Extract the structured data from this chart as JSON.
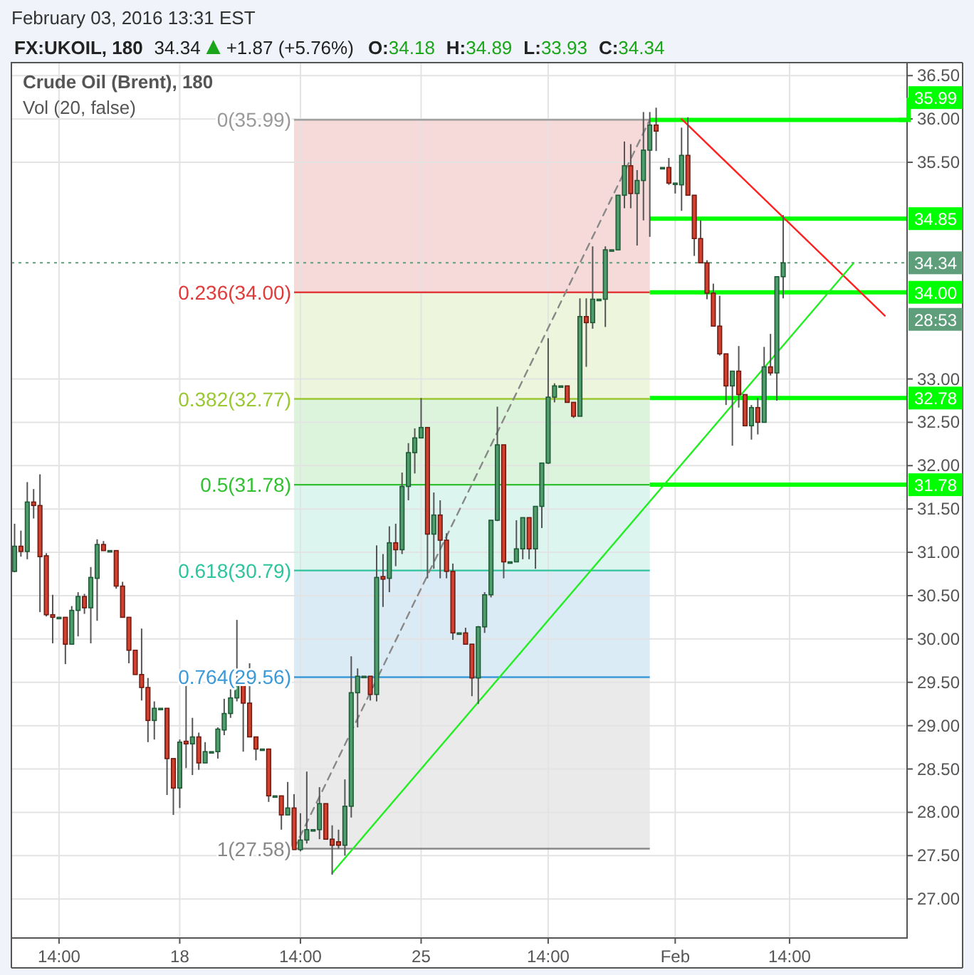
{
  "chart_data": {
    "type": "candlestick",
    "title": "Crude Oil (Brent), 180",
    "subtitle": "Vol (20, false)",
    "annotations": [
      "February 03, 2016 13:31 EST",
      "FX:UKOIL, 180",
      "34.34",
      "+1.87 (+5.76%)",
      "O:34.18",
      "H:34.89",
      "L:33.93",
      "C:34.34",
      "28:53"
    ],
    "categories": [
      null,
      null,
      null,
      null,
      null,
      null,
      null,
      "14:00",
      null,
      null,
      null,
      null,
      null,
      null,
      null,
      null,
      null,
      null,
      null,
      null,
      null,
      null,
      null,
      null,
      null,
      null,
      "18",
      null,
      null,
      null,
      null,
      null,
      null,
      null,
      null,
      null,
      null,
      null,
      null,
      null,
      null,
      null,
      null,
      null,
      null,
      "14:00",
      null,
      null,
      null,
      null,
      null,
      null,
      null,
      null,
      null,
      null,
      null,
      null,
      null,
      null,
      null,
      null,
      null,
      null,
      "25",
      null,
      null,
      null,
      null,
      null,
      null,
      null,
      null,
      null,
      null,
      null,
      null,
      null,
      null,
      null,
      null,
      null,
      null,
      null,
      "14:00",
      null,
      null,
      null,
      null,
      null,
      null,
      null,
      null,
      null,
      null,
      null,
      null,
      null,
      null,
      null,
      null,
      null,
      null,
      null,
      "Feb",
      null,
      null,
      null,
      null,
      null,
      null,
      null,
      null,
      null,
      null,
      null,
      null,
      null,
      null,
      null,
      null,
      null,
      "14:00",
      null,
      null,
      null,
      null,
      null,
      null,
      null,
      null,
      null,
      null,
      null,
      null,
      null,
      null,
      null,
      null,
      null,
      null
    ],
    "ohlc": [
      [
        30.78,
        31.33,
        30.77,
        31.07
      ],
      [
        31.07,
        31.25,
        30.95,
        31.01
      ],
      [
        31.01,
        31.81,
        30.92,
        31.58
      ],
      [
        31.58,
        31.73,
        31.39,
        31.54
      ],
      [
        31.54,
        31.9,
        30.31,
        30.95
      ],
      [
        30.96,
        30.99,
        30.26,
        30.28
      ],
      [
        30.28,
        30.51,
        29.95,
        30.25
      ],
      [
        30.25,
        30.25,
        30.25,
        30.25
      ],
      [
        30.25,
        30.25,
        29.71,
        29.94
      ],
      [
        29.94,
        30.38,
        29.94,
        30.33
      ],
      [
        30.33,
        30.54,
        30.03,
        30.49
      ],
      [
        30.49,
        30.52,
        30.29,
        30.36
      ],
      [
        30.36,
        30.83,
        29.95,
        30.71
      ],
      [
        30.7,
        31.15,
        30.21,
        31.09
      ],
      [
        31.09,
        31.13,
        31.02,
        31.02
      ],
      [
        31.02,
        31.02,
        31.02,
        31.02
      ],
      [
        31.02,
        31.02,
        30.58,
        30.61
      ],
      [
        30.61,
        30.66,
        30.25,
        30.25
      ],
      [
        30.25,
        30.25,
        29.72,
        29.87
      ],
      [
        29.87,
        29.87,
        29.59,
        29.59
      ],
      [
        29.59,
        30.12,
        29.29,
        29.44
      ],
      [
        29.44,
        29.55,
        28.81,
        29.06
      ],
      [
        29.06,
        29.28,
        28.84,
        29.2
      ],
      [
        29.2,
        29.2,
        29.2,
        29.2
      ],
      [
        29.2,
        29.2,
        28.2,
        28.62
      ],
      [
        28.62,
        28.62,
        27.97,
        28.28
      ],
      [
        28.28,
        28.84,
        28.05,
        28.81
      ],
      [
        28.82,
        29.47,
        28.51,
        28.79
      ],
      [
        28.79,
        29.09,
        28.43,
        28.87
      ],
      [
        28.87,
        28.92,
        28.49,
        28.57
      ],
      [
        28.57,
        28.81,
        28.57,
        28.7
      ],
      [
        28.7,
        28.7,
        28.7,
        28.7
      ],
      [
        28.7,
        28.98,
        28.62,
        28.96
      ],
      [
        28.95,
        29.31,
        28.89,
        29.14
      ],
      [
        29.14,
        29.42,
        29.09,
        29.32
      ],
      [
        29.32,
        30.22,
        29.28,
        29.51
      ],
      [
        29.51,
        29.51,
        28.7,
        29.26
      ],
      [
        29.26,
        29.72,
        28.87,
        28.87
      ],
      [
        28.87,
        28.87,
        28.6,
        28.73
      ],
      [
        28.73,
        28.73,
        28.73,
        28.73
      ],
      [
        28.73,
        28.73,
        28.12,
        28.19
      ],
      [
        28.19,
        28.19,
        28.19,
        28.19
      ],
      [
        28.19,
        28.19,
        27.8,
        27.97
      ],
      [
        27.97,
        28.35,
        27.97,
        28.05
      ],
      [
        28.05,
        28.21,
        27.57,
        27.57
      ],
      [
        27.57,
        27.99,
        27.55,
        27.68
      ],
      [
        27.68,
        28.47,
        27.64,
        27.8
      ],
      [
        27.8,
        27.8,
        27.8,
        27.8
      ],
      [
        27.8,
        28.29,
        27.69,
        28.1
      ],
      [
        28.1,
        28.1,
        27.69,
        27.69
      ],
      [
        27.69,
        27.85,
        27.28,
        27.62
      ],
      [
        27.66,
        27.8,
        27.58,
        27.62
      ],
      [
        27.62,
        28.38,
        27.5,
        28.07
      ],
      [
        28.07,
        29.8,
        27.94,
        29.38
      ],
      [
        29.38,
        29.66,
        28.98,
        29.57
      ],
      [
        29.57,
        29.57,
        29.57,
        29.57
      ],
      [
        29.57,
        29.57,
        29.29,
        29.36
      ],
      [
        29.36,
        31.08,
        29.28,
        30.71
      ],
      [
        30.72,
        30.98,
        30.37,
        30.69
      ],
      [
        30.7,
        31.3,
        30.54,
        31.11
      ],
      [
        31.11,
        31.33,
        30.84,
        31.03
      ],
      [
        31.03,
        31.92,
        30.98,
        31.76
      ],
      [
        31.76,
        32.26,
        31.6,
        32.15
      ],
      [
        32.15,
        32.43,
        31.91,
        32.32
      ],
      [
        32.32,
        32.78,
        32.32,
        32.44
      ],
      [
        32.44,
        32.44,
        30.7,
        31.21
      ],
      [
        31.21,
        31.69,
        30.81,
        31.43
      ],
      [
        31.43,
        31.6,
        30.7,
        31.14
      ],
      [
        31.14,
        31.22,
        30.7,
        30.78
      ],
      [
        30.78,
        30.87,
        29.99,
        30.07
      ],
      [
        30.07,
        30.07,
        30.07,
        30.07
      ],
      [
        30.07,
        30.13,
        29.94,
        29.94
      ],
      [
        29.94,
        29.94,
        29.34,
        29.55
      ],
      [
        29.55,
        30.15,
        29.25,
        30.14
      ],
      [
        30.14,
        30.54,
        30.07,
        30.51
      ],
      [
        30.51,
        31.37,
        30.48,
        31.37
      ],
      [
        31.37,
        32.68,
        31.36,
        32.24
      ],
      [
        32.24,
        32.24,
        30.7,
        30.89
      ],
      [
        30.89,
        30.89,
        30.89,
        30.89
      ],
      [
        30.89,
        31.37,
        30.89,
        31.04
      ],
      [
        31.04,
        31.4,
        30.92,
        31.4
      ],
      [
        31.4,
        31.4,
        30.92,
        31.04
      ],
      [
        31.04,
        31.53,
        30.81,
        31.53
      ],
      [
        31.53,
        32.03,
        31.28,
        32.03
      ],
      [
        32.03,
        33.47,
        32.02,
        32.79
      ],
      [
        32.79,
        32.95,
        32.73,
        32.92
      ],
      [
        32.92,
        32.92,
        32.92,
        32.92
      ],
      [
        32.92,
        32.92,
        32.73,
        32.73
      ],
      [
        32.73,
        32.73,
        32.55,
        32.57
      ],
      [
        32.57,
        33.93,
        32.57,
        33.72
      ],
      [
        33.72,
        33.93,
        33.14,
        33.65
      ],
      [
        33.65,
        34.53,
        33.58,
        33.92
      ],
      [
        33.92,
        33.92,
        33.92,
        33.92
      ],
      [
        33.92,
        34.53,
        33.6,
        34.49
      ],
      [
        34.49,
        34.49,
        34.49,
        34.49
      ],
      [
        34.49,
        35.12,
        34.49,
        35.12
      ],
      [
        35.12,
        35.74,
        34.97,
        35.46
      ],
      [
        35.46,
        35.71,
        34.97,
        35.14
      ],
      [
        35.14,
        35.41,
        34.54,
        35.29
      ],
      [
        35.29,
        36.08,
        34.83,
        35.64
      ],
      [
        35.64,
        36.08,
        34.64,
        35.93
      ],
      [
        35.93,
        36.13,
        35.63,
        35.86
      ],
      [
        35.44,
        35.44,
        35.44,
        35.44
      ],
      [
        35.44,
        35.55,
        35.24,
        35.26
      ],
      [
        35.26,
        35.26,
        35.14,
        35.26
      ],
      [
        35.24,
        35.9,
        34.94,
        35.58
      ],
      [
        35.58,
        36.02,
        35.12,
        35.12
      ],
      [
        35.12,
        35.12,
        34.42,
        34.62
      ],
      [
        34.62,
        34.83,
        34.34,
        34.34
      ],
      [
        34.34,
        34.37,
        33.92,
        33.99
      ],
      [
        33.99,
        34.1,
        33.61,
        33.61
      ],
      [
        33.61,
        33.96,
        33.27,
        33.29
      ],
      [
        33.29,
        33.29,
        32.7,
        32.92
      ],
      [
        32.92,
        33.09,
        32.23,
        33.09
      ],
      [
        33.09,
        33.38,
        32.67,
        32.82
      ],
      [
        32.82,
        32.82,
        32.46,
        32.46
      ],
      [
        32.46,
        32.7,
        32.3,
        32.67
      ],
      [
        32.67,
        32.78,
        32.36,
        32.5
      ],
      [
        32.5,
        33.37,
        32.5,
        33.14
      ],
      [
        33.14,
        33.52,
        33.04,
        33.07
      ],
      [
        33.07,
        34.18,
        32.75,
        34.18
      ],
      [
        34.18,
        34.89,
        33.93,
        34.34
      ],
      null,
      null,
      null,
      null,
      null,
      null,
      null,
      null,
      null,
      null,
      null,
      null,
      null,
      null,
      null,
      null,
      null,
      null,
      null
    ],
    "series": [
      {
        "type": "line",
        "values": [
          null,
          null,
          null,
          null,
          null,
          null,
          null,
          null,
          null,
          null,
          null,
          null,
          null,
          null,
          null,
          null,
          null,
          null,
          null,
          null,
          null,
          null,
          null,
          null,
          null,
          null,
          null,
          null,
          null,
          null,
          null,
          null,
          null,
          null,
          null,
          null,
          null,
          null,
          null,
          null,
          null,
          null,
          null,
          null,
          null,
          null,
          null,
          null,
          null,
          null,
          null,
          null,
          null,
          null,
          null,
          null,
          null,
          null,
          null,
          null,
          null,
          null,
          null,
          null,
          null,
          null,
          null,
          null,
          null,
          null,
          null,
          null,
          null,
          null,
          null,
          null,
          null,
          null,
          null,
          null,
          null,
          null,
          null,
          null,
          null,
          null,
          null,
          null,
          null,
          null,
          null,
          null,
          null,
          null,
          null,
          null,
          null,
          null,
          null,
          null,
          null,
          null,
          null,
          null,
          null,
          36.0,
          null,
          null,
          null,
          null,
          null,
          null,
          null,
          null,
          null,
          null,
          null,
          null,
          null,
          null,
          null,
          null,
          null,
          null,
          null,
          null,
          null,
          null,
          null,
          null,
          null,
          null,
          null,
          null,
          null,
          null,
          null,
          33.73,
          null,
          null,
          null
        ],
        "color": "#ff2020"
      },
      {
        "type": "line",
        "values": [
          null,
          null,
          null,
          null,
          null,
          null,
          null,
          null,
          null,
          null,
          null,
          null,
          null,
          null,
          null,
          null,
          null,
          null,
          null,
          null,
          null,
          null,
          null,
          null,
          null,
          null,
          null,
          null,
          null,
          null,
          null,
          null,
          null,
          null,
          null,
          null,
          null,
          null,
          null,
          null,
          null,
          null,
          null,
          null,
          null,
          null,
          null,
          null,
          null,
          null,
          27.3,
          null,
          null,
          null,
          null,
          null,
          null,
          null,
          null,
          null,
          null,
          null,
          null,
          null,
          null,
          null,
          null,
          null,
          null,
          null,
          null,
          null,
          null,
          null,
          null,
          null,
          null,
          null,
          null,
          null,
          null,
          null,
          null,
          null,
          null,
          null,
          null,
          null,
          null,
          null,
          null,
          null,
          null,
          null,
          null,
          null,
          null,
          null,
          null,
          null,
          null,
          null,
          null,
          null,
          null,
          null,
          null,
          null,
          null,
          null,
          null,
          null,
          null,
          null,
          null,
          null,
          null,
          null,
          null,
          null,
          null,
          null,
          null,
          null,
          null,
          null,
          null,
          null,
          null,
          null,
          null,
          null,
          34.33,
          null,
          null,
          null,
          null,
          null,
          null,
          null,
          null
        ],
        "color": "#22ee22"
      },
      {
        "type": "line",
        "values": [
          null,
          null,
          null,
          null,
          null,
          null,
          null,
          null,
          null,
          null,
          null,
          null,
          null,
          null,
          null,
          null,
          null,
          null,
          null,
          null,
          null,
          null,
          null,
          null,
          null,
          null,
          null,
          null,
          null,
          null,
          null,
          null,
          null,
          null,
          null,
          null,
          null,
          null,
          null,
          null,
          null,
          null,
          null,
          null,
          27.58,
          null,
          null,
          null,
          null,
          null,
          null,
          null,
          null,
          null,
          null,
          null,
          null,
          null,
          null,
          null,
          null,
          null,
          null,
          null,
          null,
          null,
          null,
          null,
          null,
          null,
          null,
          null,
          null,
          null,
          null,
          null,
          null,
          null,
          null,
          null,
          null,
          null,
          null,
          null,
          null,
          null,
          null,
          null,
          null,
          null,
          null,
          null,
          null,
          null,
          null,
          null,
          null,
          null,
          null,
          null,
          35.99,
          null,
          null,
          null,
          null,
          null,
          null,
          null,
          null,
          null,
          null,
          null,
          null,
          null,
          null,
          null,
          null,
          null,
          null,
          null,
          null,
          null,
          null,
          null,
          null,
          null,
          null,
          null,
          null,
          null,
          null,
          null,
          null,
          null,
          null,
          null,
          null,
          null,
          null,
          null,
          null
        ],
        "color": "#888888",
        "line_style": "dashed"
      }
    ],
    "ylim": [
      26.55,
      36.65
    ],
    "yticks": [
      {
        "value": 27,
        "label": "27.00"
      },
      {
        "value": 27.5,
        "label": "27.50"
      },
      {
        "value": 28,
        "label": "28.00"
      },
      {
        "value": 28.5,
        "label": "28.50"
      },
      {
        "value": 29,
        "label": "29.00"
      },
      {
        "value": 29.5,
        "label": "29.50"
      },
      {
        "value": 30,
        "label": "30.00"
      },
      {
        "value": 30.5,
        "label": "30.50"
      },
      {
        "value": 31,
        "label": "31.00"
      },
      {
        "value": 31.5,
        "label": "31.50"
      },
      {
        "value": 32,
        "label": "32.00"
      },
      {
        "value": 32.5,
        "label": "32.50"
      },
      {
        "value": 33,
        "label": "33.00"
      },
      {
        "value": 35.5,
        "label": "35.50"
      },
      {
        "value": 36,
        "label": "36.00"
      },
      {
        "value": 36.5,
        "label": "36.50"
      }
    ],
    "bands": [
      {
        "axis": "y",
        "from": 34.0,
        "to": 35.99,
        "color": "#f5d2d2"
      },
      {
        "axis": "y",
        "from": 32.77,
        "to": 34.0,
        "color": "#eaf5d6"
      },
      {
        "axis": "y",
        "from": 31.78,
        "to": 32.77,
        "color": "#d6f2d6"
      },
      {
        "axis": "y",
        "from": 30.79,
        "to": 31.78,
        "color": "#d6f3ec"
      },
      {
        "axis": "y",
        "from": 29.56,
        "to": 30.79,
        "color": "#d4e7f5"
      },
      {
        "axis": "y",
        "from": 27.58,
        "to": 29.56,
        "color": "#e6e6e6"
      }
    ],
    "ref_lines": [
      {
        "axis": "y",
        "value": 35.99,
        "label": "0(35.99)",
        "color": "#999999"
      },
      {
        "axis": "y",
        "value": 34.0,
        "label": "0.236(34.00)",
        "color": "#e03a3a"
      },
      {
        "axis": "y",
        "value": 32.77,
        "label": "0.382(32.77)",
        "color": "#9ac832"
      },
      {
        "axis": "y",
        "value": 31.78,
        "label": "0.5(31.78)",
        "color": "#30c030"
      },
      {
        "axis": "y",
        "value": 30.79,
        "label": "0.618(30.79)",
        "color": "#2ec49e"
      },
      {
        "axis": "y",
        "value": 29.56,
        "label": "0.764(29.56)",
        "color": "#3a9ad9"
      },
      {
        "axis": "y",
        "value": 27.58,
        "label": "1(27.58)",
        "color": "#888888"
      },
      {
        "axis": "y",
        "value": 35.99,
        "label": "35.99",
        "color": "#00ff00"
      },
      {
        "axis": "y",
        "value": 34.85,
        "label": "34.85",
        "color": "#00ff00"
      },
      {
        "axis": "y",
        "value": 34.0,
        "label": "34.00",
        "color": "#00ff00"
      },
      {
        "axis": "y",
        "value": 32.78,
        "label": "32.78",
        "color": "#00ff00"
      },
      {
        "axis": "y",
        "value": 31.78,
        "label": "31.78",
        "color": "#00ff00"
      },
      {
        "axis": "y",
        "value": 34.34,
        "label": "34.34",
        "color": "#5e9e7a",
        "line_style": "dotted"
      }
    ],
    "grid": true
  }
}
